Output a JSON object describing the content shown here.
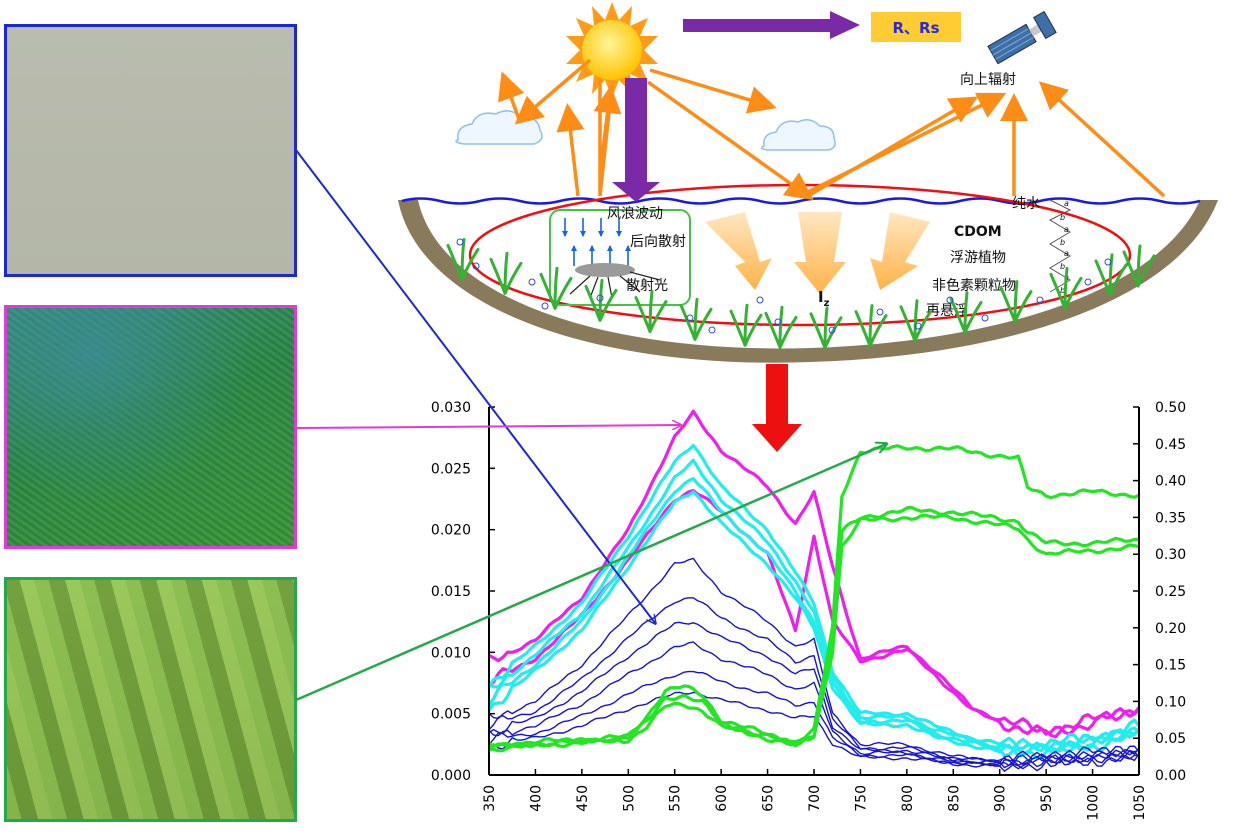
{
  "diagram": {
    "rs_box_label": "R、Rs",
    "upward_radiation_label": "向上辐射",
    "wave_label": "风浪波动",
    "backscatter_label": "后向散射",
    "scattered_light_label": "散射光",
    "iz_label": "I",
    "iz_subscript": "z",
    "pure_water_label": "纯水",
    "cdom_label": "CDOM",
    "phytoplankton_label": "浮游植物",
    "non_pigment_label": "非色素颗粒物",
    "resuspension_label": "再悬浮",
    "ab_letters": [
      "a",
      "b",
      "a",
      "b",
      "a",
      "b",
      "a",
      "b"
    ]
  },
  "colors": {
    "clear_water": "#1c27d8",
    "bloom": "#e03ad8",
    "scum": "#23a84a",
    "magenta_series": "#ee1fee",
    "cyan_series": "#22ecec",
    "blue_series": "#1414d0",
    "green_series": "#22e622",
    "sun": "#ffd21e",
    "orange_arrow": "#ff8c14",
    "purple_arrow": "#7a2aa6",
    "red_arrow": "#ee1010"
  },
  "chart_data": {
    "type": "line",
    "x_ticks": [
      "350",
      "400",
      "450",
      "500",
      "550",
      "600",
      "650",
      "700",
      "750",
      "800",
      "850",
      "900",
      "950",
      "1000",
      "1050"
    ],
    "xlim": [
      350,
      1050
    ],
    "left_axis": {
      "ylim": [
        0,
        0.03
      ],
      "ticks": [
        "0.000",
        "0.005",
        "0.010",
        "0.015",
        "0.020",
        "0.025",
        "0.030"
      ]
    },
    "right_axis": {
      "ylim": [
        0,
        0.5
      ],
      "ticks": [
        "0.00",
        "0.05",
        "0.10",
        "0.15",
        "0.20",
        "0.25",
        "0.30",
        "0.35",
        "0.40",
        "0.45",
        "0.50"
      ]
    },
    "series": [
      {
        "group": "magenta",
        "axis": "left",
        "x": [
          350,
          400,
          450,
          500,
          550,
          570,
          600,
          650,
          680,
          700,
          720,
          750,
          800,
          830,
          870,
          900,
          950,
          1000,
          1050
        ],
        "y": [
          0.0092,
          0.011,
          0.0145,
          0.02,
          0.0275,
          0.0295,
          0.0265,
          0.0235,
          0.0205,
          0.023,
          0.017,
          0.0095,
          0.0105,
          0.0085,
          0.0055,
          0.0045,
          0.0035,
          0.0045,
          0.0055
        ]
      },
      {
        "group": "magenta",
        "axis": "left",
        "x": [
          350,
          400,
          450,
          500,
          550,
          570,
          600,
          650,
          680,
          700,
          720,
          750,
          800,
          830,
          870,
          900,
          950,
          1000,
          1050
        ],
        "y": [
          0.0075,
          0.0095,
          0.013,
          0.0175,
          0.0225,
          0.0232,
          0.0215,
          0.018,
          0.0118,
          0.0195,
          0.0125,
          0.0093,
          0.0102,
          0.0082,
          0.0053,
          0.0043,
          0.0033,
          0.0043,
          0.0053
        ]
      },
      {
        "group": "cyan",
        "axis": "left",
        "x": [
          350,
          400,
          450,
          500,
          550,
          570,
          600,
          650,
          680,
          700,
          720,
          750,
          800,
          830,
          870,
          900,
          950,
          1000,
          1050
        ],
        "y": [
          0.0075,
          0.0105,
          0.014,
          0.0195,
          0.0255,
          0.027,
          0.0235,
          0.02,
          0.0165,
          0.014,
          0.0085,
          0.005,
          0.005,
          0.004,
          0.003,
          0.0025,
          0.0025,
          0.003,
          0.004
        ]
      },
      {
        "group": "cyan",
        "axis": "left",
        "x": [
          350,
          400,
          450,
          500,
          550,
          570,
          600,
          650,
          680,
          700,
          720,
          750,
          800,
          830,
          870,
          900,
          950,
          1000,
          1050
        ],
        "y": [
          0.0068,
          0.0098,
          0.0132,
          0.0185,
          0.0242,
          0.0255,
          0.0225,
          0.019,
          0.0158,
          0.0132,
          0.008,
          0.0047,
          0.0047,
          0.0037,
          0.0028,
          0.0023,
          0.0023,
          0.0028,
          0.0038
        ]
      },
      {
        "group": "cyan",
        "axis": "left",
        "x": [
          350,
          400,
          450,
          500,
          550,
          570,
          600,
          650,
          680,
          700,
          720,
          750,
          800,
          830,
          870,
          900,
          950,
          1000,
          1050
        ],
        "y": [
          0.006,
          0.009,
          0.0125,
          0.0178,
          0.0232,
          0.0242,
          0.0215,
          0.018,
          0.015,
          0.0125,
          0.0075,
          0.0044,
          0.0044,
          0.0034,
          0.0026,
          0.0021,
          0.0021,
          0.0026,
          0.0036
        ]
      },
      {
        "group": "cyan",
        "axis": "left",
        "x": [
          350,
          400,
          450,
          500,
          550,
          570,
          600,
          650,
          680,
          700,
          720,
          750,
          800,
          830,
          870,
          900,
          950,
          1000,
          1050
        ],
        "y": [
          0.0055,
          0.0085,
          0.0118,
          0.017,
          0.0222,
          0.0232,
          0.0205,
          0.0172,
          0.0144,
          0.012,
          0.0072,
          0.0041,
          0.0041,
          0.0031,
          0.0024,
          0.0019,
          0.0019,
          0.0024,
          0.0034
        ]
      },
      {
        "group": "blue",
        "axis": "left",
        "x": [
          350,
          400,
          450,
          500,
          550,
          570,
          600,
          650,
          680,
          700,
          720,
          750,
          800,
          850,
          900,
          950,
          1000,
          1050
        ],
        "y": [
          0.0045,
          0.006,
          0.009,
          0.013,
          0.0172,
          0.0175,
          0.015,
          0.0125,
          0.0105,
          0.011,
          0.005,
          0.0025,
          0.0025,
          0.0015,
          0.0012,
          0.0015,
          0.0018,
          0.0022
        ]
      },
      {
        "group": "blue",
        "axis": "left",
        "x": [
          350,
          400,
          450,
          500,
          550,
          570,
          600,
          650,
          680,
          700,
          720,
          750,
          800,
          850,
          900,
          950,
          1000,
          1050
        ],
        "y": [
          0.004,
          0.0052,
          0.0078,
          0.0112,
          0.0142,
          0.0145,
          0.0128,
          0.011,
          0.0092,
          0.0098,
          0.0045,
          0.0022,
          0.0022,
          0.0014,
          0.0011,
          0.0014,
          0.0016,
          0.002
        ]
      },
      {
        "group": "blue",
        "axis": "left",
        "x": [
          350,
          400,
          450,
          500,
          550,
          570,
          600,
          650,
          680,
          700,
          720,
          750,
          800,
          850,
          900,
          950,
          1000,
          1050
        ],
        "y": [
          0.0036,
          0.0046,
          0.0068,
          0.0097,
          0.0123,
          0.0125,
          0.0112,
          0.0097,
          0.0082,
          0.0087,
          0.004,
          0.002,
          0.002,
          0.0012,
          0.001,
          0.0013,
          0.0015,
          0.0019
        ]
      },
      {
        "group": "blue",
        "axis": "left",
        "x": [
          350,
          400,
          450,
          500,
          550,
          570,
          600,
          650,
          680,
          700,
          720,
          750,
          800,
          850,
          900,
          950,
          1000,
          1050
        ],
        "y": [
          0.0032,
          0.004,
          0.0058,
          0.0082,
          0.0104,
          0.0107,
          0.0095,
          0.0082,
          0.007,
          0.0074,
          0.0035,
          0.0018,
          0.0018,
          0.0011,
          0.0009,
          0.0012,
          0.0014,
          0.0017
        ]
      },
      {
        "group": "blue",
        "axis": "left",
        "x": [
          350,
          400,
          450,
          500,
          550,
          570,
          600,
          650,
          680,
          700,
          720,
          750,
          800,
          850,
          900,
          950,
          1000,
          1050
        ],
        "y": [
          0.0028,
          0.0034,
          0.0048,
          0.0066,
          0.0082,
          0.0085,
          0.0076,
          0.0066,
          0.0057,
          0.006,
          0.003,
          0.0016,
          0.0016,
          0.001,
          0.0008,
          0.0011,
          0.0013,
          0.0016
        ]
      },
      {
        "group": "blue",
        "axis": "left",
        "x": [
          350,
          400,
          450,
          500,
          550,
          570,
          600,
          650,
          680,
          700,
          720,
          750,
          800,
          850,
          900,
          950,
          1000,
          1050
        ],
        "y": [
          0.0025,
          0.003,
          0.004,
          0.0054,
          0.0066,
          0.0068,
          0.0061,
          0.0053,
          0.0046,
          0.0048,
          0.0026,
          0.0014,
          0.0014,
          0.0009,
          0.0007,
          0.001,
          0.0012,
          0.0015
        ]
      },
      {
        "group": "green",
        "axis": "right",
        "x": [
          350,
          400,
          450,
          500,
          520,
          540,
          560,
          580,
          600,
          650,
          680,
          700,
          720,
          730,
          750,
          800,
          850,
          920,
          930,
          950,
          1000,
          1050
        ],
        "y": [
          0.04,
          0.045,
          0.048,
          0.052,
          0.08,
          0.115,
          0.12,
          0.108,
          0.075,
          0.055,
          0.045,
          0.06,
          0.2,
          0.38,
          0.44,
          0.445,
          0.443,
          0.43,
          0.39,
          0.38,
          0.385,
          0.38
        ]
      },
      {
        "group": "green",
        "axis": "right",
        "x": [
          350,
          400,
          450,
          500,
          520,
          540,
          560,
          580,
          600,
          650,
          680,
          700,
          720,
          730,
          750,
          800,
          850,
          920,
          930,
          950,
          1000,
          1050
        ],
        "y": [
          0.038,
          0.042,
          0.046,
          0.05,
          0.072,
          0.105,
          0.108,
          0.098,
          0.07,
          0.052,
          0.042,
          0.055,
          0.18,
          0.33,
          0.35,
          0.36,
          0.357,
          0.345,
          0.33,
          0.315,
          0.315,
          0.32
        ]
      },
      {
        "group": "green",
        "axis": "right",
        "x": [
          350,
          400,
          450,
          500,
          520,
          540,
          560,
          580,
          600,
          650,
          680,
          700,
          720,
          730,
          750,
          800,
          850,
          920,
          930,
          950,
          1000,
          1050
        ],
        "y": [
          0.035,
          0.04,
          0.044,
          0.048,
          0.066,
          0.093,
          0.096,
          0.088,
          0.066,
          0.05,
          0.04,
          0.052,
          0.17,
          0.31,
          0.345,
          0.35,
          0.35,
          0.335,
          0.32,
          0.3,
          0.305,
          0.31
        ]
      }
    ]
  }
}
